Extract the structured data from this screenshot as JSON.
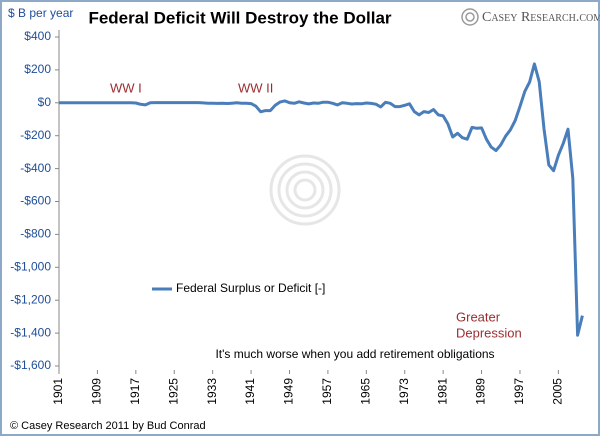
{
  "chart_data": {
    "type": "line",
    "title": "Federal Deficit Will Destroy the Dollar",
    "y_label": "$ B per year",
    "logo": "Casey Research.com",
    "annotations": [
      "WW I",
      "WW II",
      "Greater",
      "Depression"
    ],
    "note": "It's much worse when you add retirement obligations",
    "footer": "© Casey Research 2011 by Bud Conrad",
    "legend": "lower-left",
    "x": [
      1901,
      1902,
      1903,
      1904,
      1905,
      1906,
      1907,
      1908,
      1909,
      1910,
      1911,
      1912,
      1913,
      1914,
      1915,
      1916,
      1917,
      1918,
      1919,
      1920,
      1921,
      1922,
      1923,
      1924,
      1925,
      1926,
      1927,
      1928,
      1929,
      1930,
      1931,
      1932,
      1933,
      1934,
      1935,
      1936,
      1937,
      1938,
      1939,
      1940,
      1941,
      1942,
      1943,
      1944,
      1945,
      1946,
      1947,
      1948,
      1949,
      1950,
      1951,
      1952,
      1953,
      1954,
      1955,
      1956,
      1957,
      1958,
      1959,
      1960,
      1961,
      1962,
      1963,
      1964,
      1965,
      1966,
      1967,
      1968,
      1969,
      1970,
      1971,
      1972,
      1973,
      1974,
      1975,
      1976,
      1977,
      1978,
      1979,
      1980,
      1981,
      1982,
      1983,
      1984,
      1985,
      1986,
      1987,
      1988,
      1989,
      1990,
      1991,
      1992,
      1993,
      1994,
      1995,
      1996,
      1997,
      1998,
      1999,
      2000,
      2001,
      2002,
      2003,
      2004,
      2005,
      2006,
      2007,
      2008,
      2009,
      2010
    ],
    "series": [
      {
        "name": "Federal Surplus or Deficit [-]",
        "color": "#4a7ebb",
        "values": [
          0,
          0,
          0,
          0,
          0,
          0,
          0,
          0,
          0,
          0,
          0,
          0,
          0,
          0,
          0,
          0,
          -1,
          -9,
          -13,
          0,
          1,
          1,
          1,
          1,
          1,
          1,
          1,
          1,
          1,
          1,
          -0.5,
          -2.7,
          -2.6,
          -3.6,
          -2.8,
          -4.3,
          -2.2,
          -0.1,
          -2.8,
          -2.9,
          -4.9,
          -20.5,
          -54.6,
          -47.6,
          -47.6,
          -15.9,
          4,
          11.8,
          0.6,
          -3.1,
          6.1,
          -1.5,
          -6.5,
          -1.2,
          -3,
          3.9,
          3.4,
          -2.8,
          -12.8,
          0.3,
          -3.3,
          -7.1,
          -4.8,
          -5.9,
          -1.4,
          -3.7,
          -8.6,
          -25.2,
          3.2,
          -2.8,
          -23,
          -23.4,
          -14.9,
          -6.1,
          -53.2,
          -73.7,
          -53.7,
          -59.2,
          -40.7,
          -73.8,
          -79,
          -128,
          -207.8,
          -185.4,
          -212.3,
          -221.2,
          -149.7,
          -155.2,
          -152.6,
          -221,
          -269.2,
          -290.3,
          -255.1,
          -203.2,
          -164,
          -107.4,
          -21.9,
          69.3,
          125.6,
          236.2,
          128.2,
          -157.8,
          -377.6,
          -412.7,
          -318.3,
          -248.2,
          -160.7,
          -458.6,
          -1412.7,
          -1293.5
        ]
      }
    ],
    "xlim": [
      1901,
      2012
    ],
    "xticks": [
      1901,
      1909,
      1917,
      1925,
      1933,
      1941,
      1949,
      1957,
      1965,
      1973,
      1981,
      1989,
      1997,
      2005
    ],
    "ylim": [
      -1600,
      400
    ],
    "yticks": [
      {
        "value": 400,
        "label": "$400"
      },
      {
        "value": 200,
        "label": "$200"
      },
      {
        "value": 0,
        "label": "$0"
      },
      {
        "value": -200,
        "label": "-$200"
      },
      {
        "value": -400,
        "label": "-$400"
      },
      {
        "value": -600,
        "label": "-$600"
      },
      {
        "value": -800,
        "label": "-$800"
      },
      {
        "value": -1000,
        "label": "-$1,000"
      },
      {
        "value": -1200,
        "label": "-$1,200"
      },
      {
        "value": -1400,
        "label": "-$1,400"
      },
      {
        "value": -1600,
        "label": "-$1,600"
      }
    ]
  }
}
